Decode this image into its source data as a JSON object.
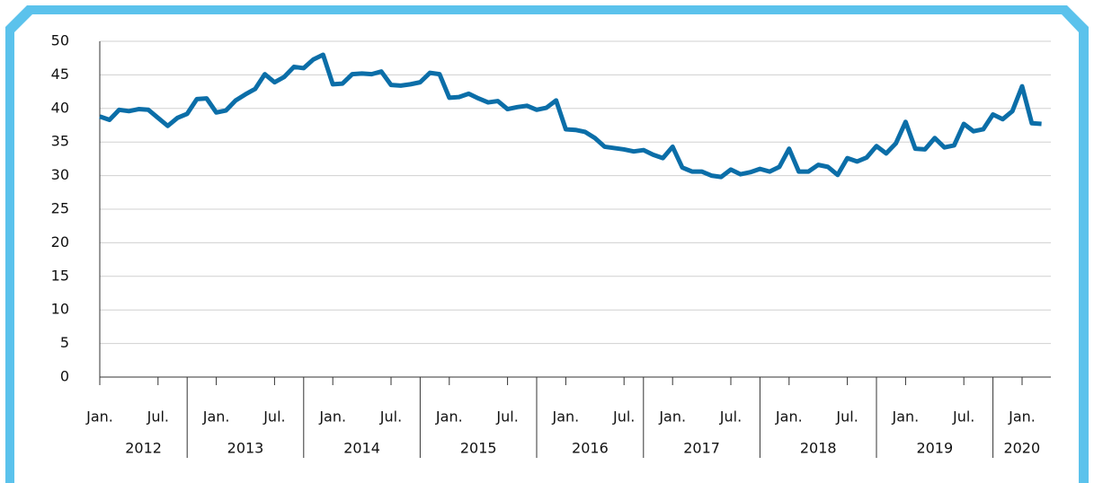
{
  "chart_data": {
    "type": "line",
    "categories": [
      "Jan.",
      null,
      null,
      null,
      null,
      null,
      "Jul.",
      null,
      null,
      null,
      null,
      null,
      "Jan.",
      null,
      null,
      null,
      null,
      null,
      "Jul.",
      null,
      null,
      null,
      null,
      null,
      "Jan.",
      null,
      null,
      null,
      null,
      null,
      "Jul.",
      null,
      null,
      null,
      null,
      null,
      "Jan.",
      null,
      null,
      null,
      null,
      null,
      "Jul.",
      null,
      null,
      null,
      null,
      null,
      "Jan.",
      null,
      null,
      null,
      null,
      null,
      "Jul.",
      null,
      null,
      null,
      null,
      "Jan.",
      null,
      null,
      null,
      null,
      null,
      "Jul.",
      null,
      null,
      null,
      null,
      null,
      "Jan.",
      null,
      null,
      null,
      null,
      null,
      "Jul.",
      null,
      null,
      null,
      null,
      null,
      "Jan.",
      null,
      null,
      null,
      null,
      null,
      "Jul.",
      null,
      null,
      null,
      null,
      null,
      "Jan.",
      null,
      null
    ],
    "years": [
      "2012",
      "2013",
      "2014",
      "2015",
      "2016",
      "2017",
      "2018",
      "2019",
      "2020"
    ],
    "series": [
      {
        "color": "#0b6ea8",
        "values": [
          38.8,
          38.3,
          39.8,
          39.6,
          39.9,
          39.8,
          38.6,
          37.4,
          38.6,
          39.2,
          41.4,
          41.5,
          39.4,
          39.7,
          41.2,
          42.1,
          42.9,
          45.1,
          43.9,
          44.7,
          46.2,
          46.0,
          47.3,
          48.0,
          43.6,
          43.7,
          45.1,
          45.2,
          45.1,
          45.5,
          43.5,
          43.4,
          43.6,
          43.9,
          45.3,
          45.1,
          41.6,
          41.7,
          42.2,
          41.5,
          40.9,
          41.1,
          39.9,
          40.2,
          40.4,
          39.8,
          40.1,
          41.2,
          36.9,
          36.8,
          36.5,
          35.6,
          34.3,
          34.1,
          33.9,
          33.6,
          33.8,
          33.1,
          32.6,
          34.3,
          31.2,
          30.6,
          30.6,
          30.0,
          29.8,
          30.9,
          30.2,
          30.5,
          31.0,
          30.6,
          31.3,
          34.0,
          30.6,
          30.6,
          31.6,
          31.3,
          30.1,
          32.6,
          32.1,
          32.7,
          34.4,
          33.3,
          34.8,
          38.0,
          34.0,
          33.9,
          35.6,
          34.2,
          34.5,
          37.7,
          36.6,
          36.9,
          39.1,
          38.4,
          39.6,
          43.3,
          37.8,
          37.7
        ]
      }
    ],
    "ylim": [
      0,
      50
    ],
    "yticks": [
      0,
      5,
      10,
      15,
      20,
      25,
      30,
      35,
      40,
      45,
      50
    ],
    "grid": true
  }
}
